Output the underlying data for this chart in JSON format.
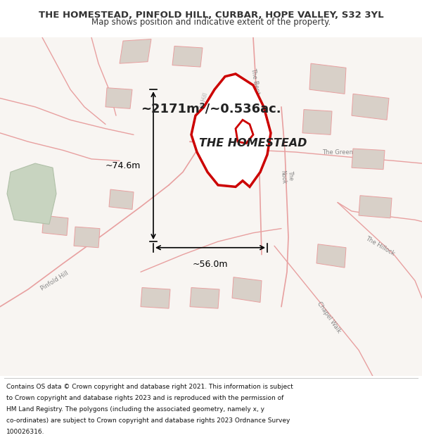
{
  "title": "THE HOMESTEAD, PINFOLD HILL, CURBAR, HOPE VALLEY, S32 3YL",
  "subtitle": "Map shows position and indicative extent of the property.",
  "area_text": "~2171m²/~0.536ac.",
  "property_label": "THE HOMESTEAD",
  "dim_vertical": "~74.6m",
  "dim_horizontal": "~56.0m",
  "footer": "Contains OS data © Crown copyright and database right 2021. This information is subject to Crown copyright and database rights 2023 and is reproduced with the permission of HM Land Registry. The polygons (including the associated geometry, namely x, y co-ordinates) are subject to Crown copyright and database rights 2023 Ordnance Survey 100026316.",
  "bg_color": "#f5f0ed",
  "map_bg": "#f5f0ed",
  "road_color": "#e8a0a0",
  "building_color": "#d0c8c0",
  "green_color": "#c8d8c0",
  "highlight_color": "#cc0000",
  "highlight_fill": "#ffffff",
  "text_color": "#333333",
  "road_light_color": "#f0d0d0"
}
